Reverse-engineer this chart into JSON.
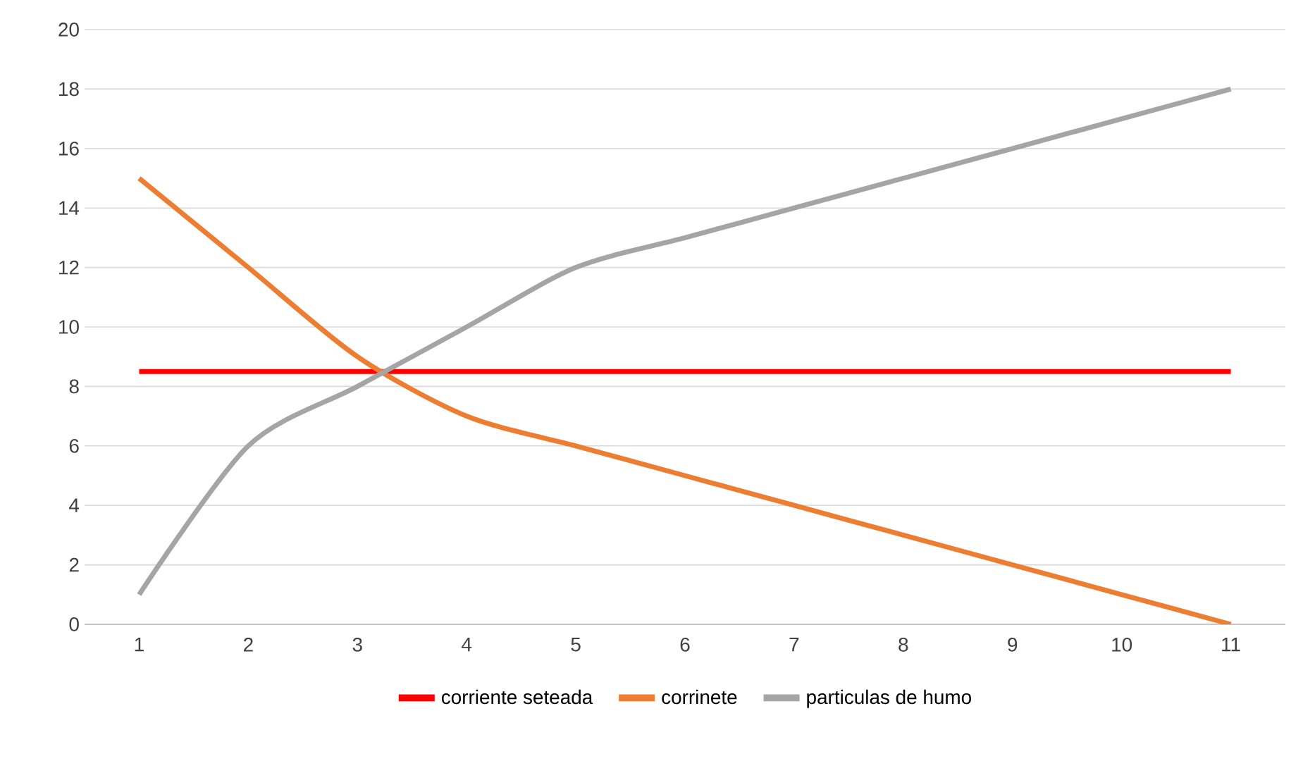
{
  "chart_data": {
    "type": "line",
    "categories": [
      "1",
      "2",
      "3",
      "4",
      "5",
      "6",
      "7",
      "8",
      "9",
      "10",
      "11"
    ],
    "series": [
      {
        "name": "corriente seteada",
        "color": "#ff0000",
        "values": [
          8.5,
          8.5,
          8.5,
          8.5,
          8.5,
          8.5,
          8.5,
          8.5,
          8.5,
          8.5,
          8.5
        ]
      },
      {
        "name": "corrinete",
        "color": "#ed7d31",
        "values": [
          15,
          12,
          9,
          7,
          6,
          5,
          4,
          3,
          2,
          1,
          0
        ]
      },
      {
        "name": "particulas de humo",
        "color": "#a5a5a5",
        "values": [
          1,
          6,
          8,
          10,
          12,
          13,
          14,
          15,
          16,
          17,
          18
        ]
      }
    ],
    "ylim": [
      0,
      20
    ],
    "yticks": [
      0,
      2,
      4,
      6,
      8,
      10,
      12,
      14,
      16,
      18,
      20
    ],
    "grid": "y",
    "legend": "bottom",
    "marker": "none",
    "line_style": "solid"
  }
}
